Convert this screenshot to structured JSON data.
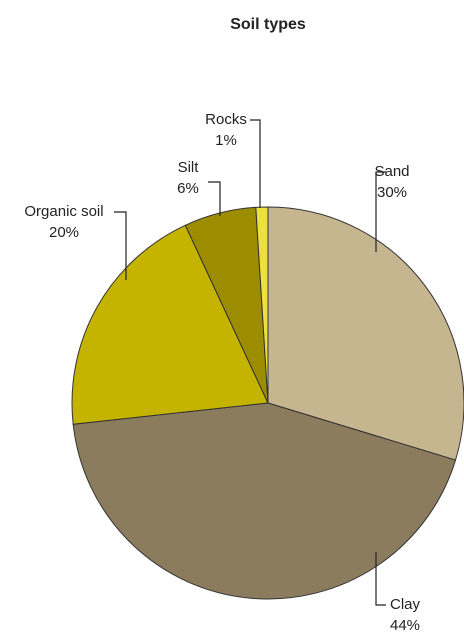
{
  "chart_data": {
    "type": "pie",
    "title": "Soil types",
    "categories": [
      "Sand",
      "Clay",
      "Organic soil",
      "Silt",
      "Rocks"
    ],
    "values": [
      30,
      44,
      20,
      6,
      1
    ],
    "value_labels": [
      "30%",
      "44%",
      "20%",
      "6%",
      "1%"
    ],
    "colors": [
      "#c6b690",
      "#8c7c5e",
      "#c4b400",
      "#9c8c00",
      "#ece040"
    ]
  }
}
